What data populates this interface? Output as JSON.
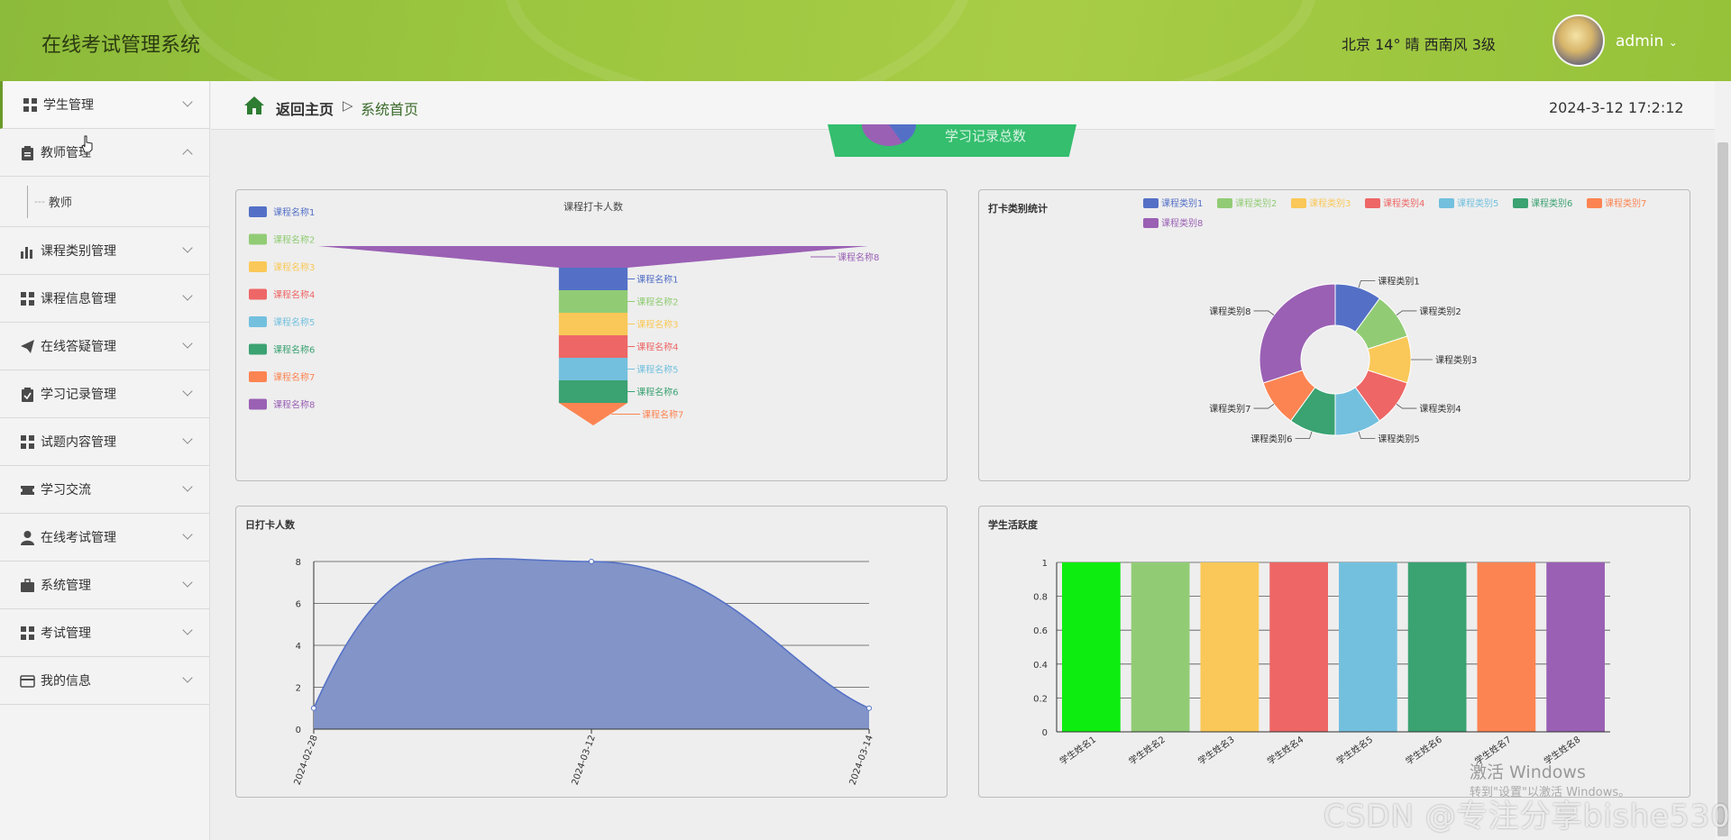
{
  "header": {
    "title": "在线考试管理系统",
    "weather": "北京  14°  晴  西南风  3级",
    "user": "admin"
  },
  "sidebar": {
    "items": [
      {
        "label": "学生管理",
        "icon": "grid-icon",
        "active": true
      },
      {
        "label": "教师管理",
        "icon": "clipboard-icon",
        "expanded": true
      },
      {
        "label": "课程类别管理",
        "icon": "bar-chart-icon"
      },
      {
        "label": "课程信息管理",
        "icon": "grid-icon"
      },
      {
        "label": "在线答疑管理",
        "icon": "paper-plane-icon"
      },
      {
        "label": "学习记录管理",
        "icon": "clipboard-check-icon"
      },
      {
        "label": "试题内容管理",
        "icon": "grid-icon"
      },
      {
        "label": "学习交流",
        "icon": "ticket-icon"
      },
      {
        "label": "在线考试管理",
        "icon": "user-icon"
      },
      {
        "label": "系统管理",
        "icon": "briefcase-icon"
      },
      {
        "label": "考试管理",
        "icon": "grid-icon"
      },
      {
        "label": "我的信息",
        "icon": "card-icon"
      }
    ],
    "sub_item": "教师"
  },
  "topbar": {
    "home": "返回主页",
    "separator": "▷",
    "current": "系统首页",
    "datetime": "2024-3-12 17:2:12"
  },
  "stat_badge": {
    "label": "学习记录总数"
  },
  "chart_data": [
    {
      "type": "funnel",
      "title": "课程打卡人数",
      "legend": [
        "课程名称1",
        "课程名称2",
        "课程名称3",
        "课程名称4",
        "课程名称5",
        "课程名称6",
        "课程名称7",
        "课程名称8"
      ],
      "categories": [
        "课程名称8",
        "课程名称1",
        "课程名称2",
        "课程名称3",
        "课程名称4",
        "课程名称5",
        "课程名称6",
        "课程名称7"
      ],
      "values": [
        8,
        1,
        1,
        1,
        1,
        1,
        1,
        0
      ],
      "colors": [
        "#9a60b4",
        "#5470c6",
        "#91cc75",
        "#fac858",
        "#ee6666",
        "#73c0de",
        "#3ba272",
        "#fc8452"
      ],
      "legend_colors": [
        "#5470c6",
        "#91cc75",
        "#fac858",
        "#ee6666",
        "#73c0de",
        "#3ba272",
        "#fc8452",
        "#9a60b4"
      ]
    },
    {
      "type": "pie",
      "title": "打卡类别统计",
      "legend": [
        "课程类别1",
        "课程类别2",
        "课程类别3",
        "课程类别4",
        "课程类别5",
        "课程类别6",
        "课程类别7",
        "课程类别8"
      ],
      "values": [
        1,
        1,
        1,
        1,
        1,
        1,
        1,
        3
      ],
      "colors": [
        "#5470c6",
        "#91cc75",
        "#fac858",
        "#ee6666",
        "#73c0de",
        "#3ba272",
        "#fc8452",
        "#9a60b4"
      ]
    },
    {
      "type": "area",
      "title": "日打卡人数",
      "x": [
        "2024-02-28",
        "2024-03-12",
        "2024-03-14"
      ],
      "values": [
        1,
        8,
        1
      ],
      "ylim": [
        0,
        8
      ],
      "yticks": [
        "0",
        "2",
        "4",
        "6",
        "8"
      ],
      "color": "#5470c6"
    },
    {
      "type": "bar",
      "title": "学生活跃度",
      "categories": [
        "学生姓名1",
        "学生姓名2",
        "学生姓名3",
        "学生姓名4",
        "学生姓名5",
        "学生姓名6",
        "学生姓名7",
        "学生姓名8"
      ],
      "values": [
        1,
        1,
        1,
        1,
        1,
        1,
        1,
        1
      ],
      "ylim": [
        0,
        1
      ],
      "yticks": [
        "0",
        "0.2",
        "0.4",
        "0.6",
        "0.8",
        "1"
      ],
      "colors": [
        "#0eed10",
        "#91cc75",
        "#fac858",
        "#ee6666",
        "#73c0de",
        "#3ba272",
        "#fc8452",
        "#9a60b4"
      ]
    }
  ],
  "watermark": {
    "activate": "激活 Windows",
    "activate_hint": "转到\"设置\"以激活 Windows。",
    "csdn": "CSDN @专注分享bishe530"
  }
}
